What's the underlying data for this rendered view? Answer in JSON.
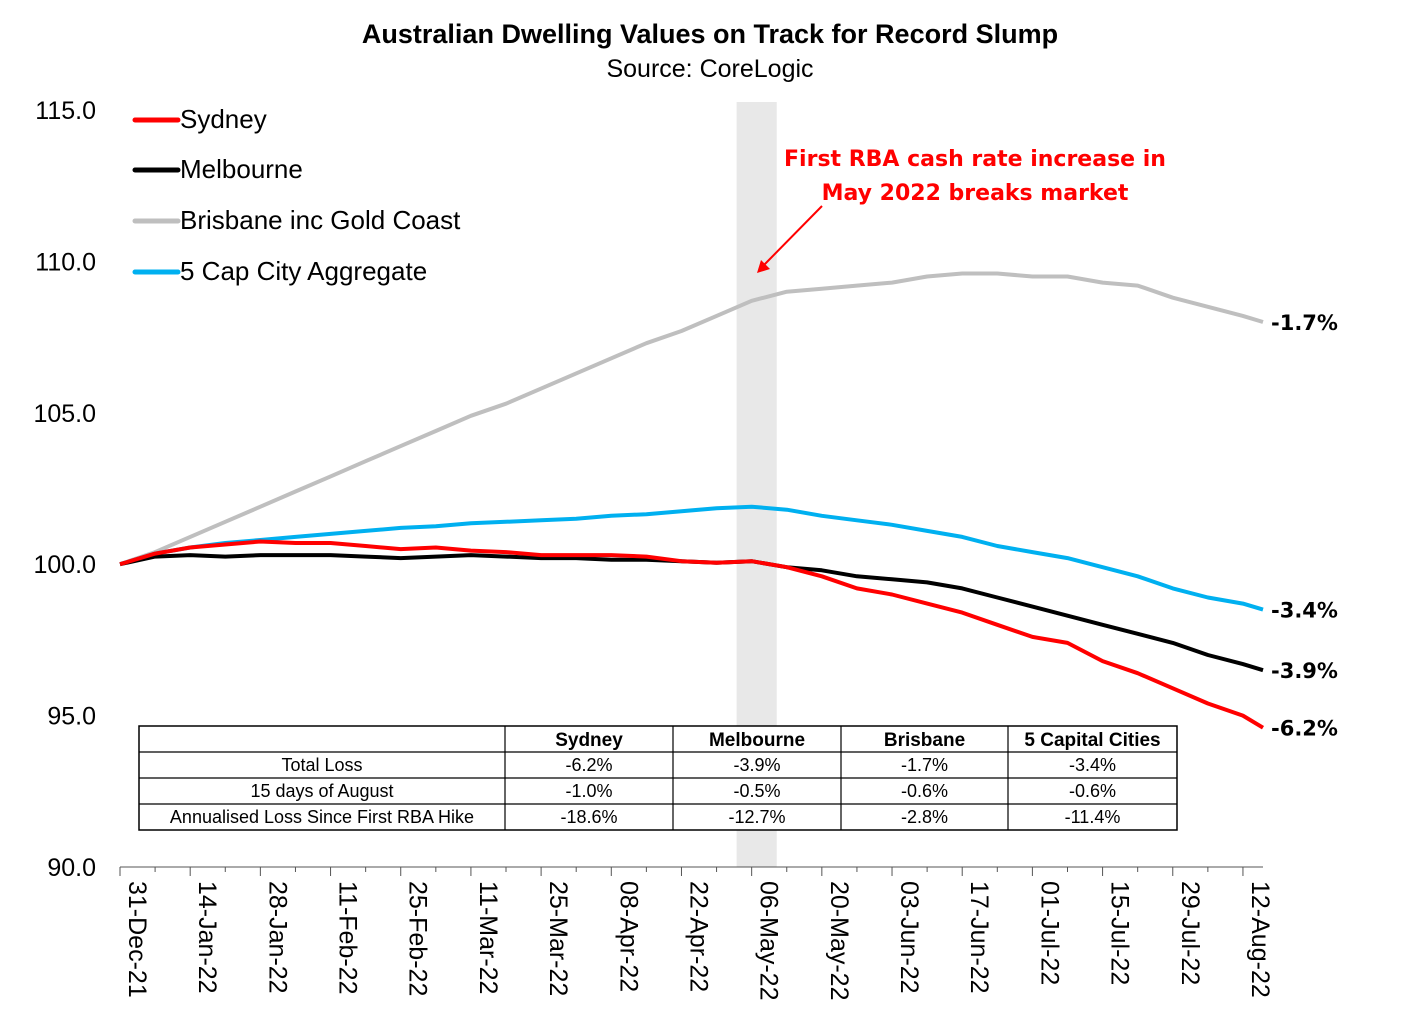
{
  "chart_data": {
    "type": "line",
    "title": "Australian Dwelling Values on Track for Record Slump",
    "subtitle": "Source: CoreLogic",
    "ylim": [
      90,
      115
    ],
    "yticks": [
      "115.0",
      "110.0",
      "105.0",
      "100.0",
      "95.0",
      "90.0"
    ],
    "xtick_labels": [
      "31-Dec-21",
      "14-Jan-22",
      "28-Jan-22",
      "11-Feb-22",
      "25-Feb-22",
      "11-Mar-22",
      "25-Mar-22",
      "08-Apr-22",
      "22-Apr-22",
      "06-May-22",
      "20-May-22",
      "03-Jun-22",
      "17-Jun-22",
      "01-Jul-22",
      "15-Jul-22",
      "29-Jul-22",
      "12-Aug-22"
    ],
    "x_days_range": [
      0,
      228
    ],
    "shaded_region": {
      "from_day": 123,
      "to_day": 131
    },
    "grid": false,
    "legend_position": "top-left",
    "annotation": {
      "lines": [
        "First RBA cash rate increase in",
        "May 2022 breaks market"
      ],
      "color": "#ff0000"
    },
    "series": [
      {
        "name": "Sydney",
        "color": "#ff0000",
        "end_label": "-6.2%",
        "points": [
          [
            0,
            100.0
          ],
          [
            7,
            100.35
          ],
          [
            14,
            100.55
          ],
          [
            21,
            100.65
          ],
          [
            28,
            100.75
          ],
          [
            35,
            100.7
          ],
          [
            42,
            100.7
          ],
          [
            49,
            100.6
          ],
          [
            56,
            100.5
          ],
          [
            63,
            100.55
          ],
          [
            70,
            100.45
          ],
          [
            77,
            100.4
          ],
          [
            84,
            100.3
          ],
          [
            91,
            100.3
          ],
          [
            98,
            100.3
          ],
          [
            105,
            100.25
          ],
          [
            112,
            100.1
          ],
          [
            119,
            100.05
          ],
          [
            126,
            100.1
          ],
          [
            133,
            99.9
          ],
          [
            140,
            99.6
          ],
          [
            147,
            99.2
          ],
          [
            154,
            99.0
          ],
          [
            161,
            98.7
          ],
          [
            168,
            98.4
          ],
          [
            175,
            98.0
          ],
          [
            182,
            97.6
          ],
          [
            189,
            97.4
          ],
          [
            196,
            96.8
          ],
          [
            203,
            96.4
          ],
          [
            210,
            95.9
          ],
          [
            217,
            95.4
          ],
          [
            224,
            95.0
          ],
          [
            228,
            94.6
          ]
        ]
      },
      {
        "name": "Melbourne",
        "color": "#000000",
        "end_label": "-3.9%",
        "points": [
          [
            0,
            100.0
          ],
          [
            7,
            100.25
          ],
          [
            14,
            100.3
          ],
          [
            21,
            100.25
          ],
          [
            28,
            100.3
          ],
          [
            35,
            100.3
          ],
          [
            42,
            100.3
          ],
          [
            49,
            100.25
          ],
          [
            56,
            100.2
          ],
          [
            63,
            100.25
          ],
          [
            70,
            100.3
          ],
          [
            77,
            100.25
          ],
          [
            84,
            100.2
          ],
          [
            91,
            100.2
          ],
          [
            98,
            100.15
          ],
          [
            105,
            100.15
          ],
          [
            112,
            100.1
          ],
          [
            119,
            100.05
          ],
          [
            126,
            100.1
          ],
          [
            133,
            99.9
          ],
          [
            140,
            99.8
          ],
          [
            147,
            99.6
          ],
          [
            154,
            99.5
          ],
          [
            161,
            99.4
          ],
          [
            168,
            99.2
          ],
          [
            175,
            98.9
          ],
          [
            182,
            98.6
          ],
          [
            189,
            98.3
          ],
          [
            196,
            98.0
          ],
          [
            203,
            97.7
          ],
          [
            210,
            97.4
          ],
          [
            217,
            97.0
          ],
          [
            224,
            96.7
          ],
          [
            228,
            96.5
          ]
        ]
      },
      {
        "name": "Brisbane inc Gold Coast",
        "color": "#bfbfbf",
        "end_label": "-1.7%",
        "points": [
          [
            0,
            100.0
          ],
          [
            7,
            100.4
          ],
          [
            14,
            100.9
          ],
          [
            21,
            101.4
          ],
          [
            28,
            101.9
          ],
          [
            35,
            102.4
          ],
          [
            42,
            102.9
          ],
          [
            49,
            103.4
          ],
          [
            56,
            103.9
          ],
          [
            63,
            104.4
          ],
          [
            70,
            104.9
          ],
          [
            77,
            105.3
          ],
          [
            84,
            105.8
          ],
          [
            91,
            106.3
          ],
          [
            98,
            106.8
          ],
          [
            105,
            107.3
          ],
          [
            112,
            107.7
          ],
          [
            119,
            108.2
          ],
          [
            126,
            108.7
          ],
          [
            133,
            109.0
          ],
          [
            140,
            109.1
          ],
          [
            147,
            109.2
          ],
          [
            154,
            109.3
          ],
          [
            161,
            109.5
          ],
          [
            168,
            109.6
          ],
          [
            175,
            109.6
          ],
          [
            182,
            109.5
          ],
          [
            189,
            109.5
          ],
          [
            196,
            109.3
          ],
          [
            203,
            109.2
          ],
          [
            210,
            108.8
          ],
          [
            217,
            108.5
          ],
          [
            224,
            108.2
          ],
          [
            228,
            108.0
          ]
        ]
      },
      {
        "name": "5 Cap City Aggregate",
        "color": "#00b0f0",
        "end_label": "-3.4%",
        "points": [
          [
            0,
            100.0
          ],
          [
            7,
            100.35
          ],
          [
            14,
            100.55
          ],
          [
            21,
            100.7
          ],
          [
            28,
            100.8
          ],
          [
            35,
            100.9
          ],
          [
            42,
            101.0
          ],
          [
            49,
            101.1
          ],
          [
            56,
            101.2
          ],
          [
            63,
            101.25
          ],
          [
            70,
            101.35
          ],
          [
            77,
            101.4
          ],
          [
            84,
            101.45
          ],
          [
            91,
            101.5
          ],
          [
            98,
            101.6
          ],
          [
            105,
            101.65
          ],
          [
            112,
            101.75
          ],
          [
            119,
            101.85
          ],
          [
            126,
            101.9
          ],
          [
            133,
            101.8
          ],
          [
            140,
            101.6
          ],
          [
            147,
            101.45
          ],
          [
            154,
            101.3
          ],
          [
            161,
            101.1
          ],
          [
            168,
            100.9
          ],
          [
            175,
            100.6
          ],
          [
            182,
            100.4
          ],
          [
            189,
            100.2
          ],
          [
            196,
            99.9
          ],
          [
            203,
            99.6
          ],
          [
            210,
            99.2
          ],
          [
            217,
            98.9
          ],
          [
            224,
            98.7
          ],
          [
            228,
            98.5
          ]
        ]
      }
    ],
    "table": {
      "columns": [
        "",
        "Sydney",
        "Melbourne",
        "Brisbane",
        "5 Capital Cities"
      ],
      "rows": [
        [
          "Total Loss",
          "-6.2%",
          "-3.9%",
          "-1.7%",
          "-3.4%"
        ],
        [
          "15 days of August",
          "-1.0%",
          "-0.5%",
          "-0.6%",
          "-0.6%"
        ],
        [
          "Annualised Loss Since First RBA Hike",
          "-18.6%",
          "-12.7%",
          "-2.8%",
          "-11.4%"
        ]
      ]
    }
  }
}
